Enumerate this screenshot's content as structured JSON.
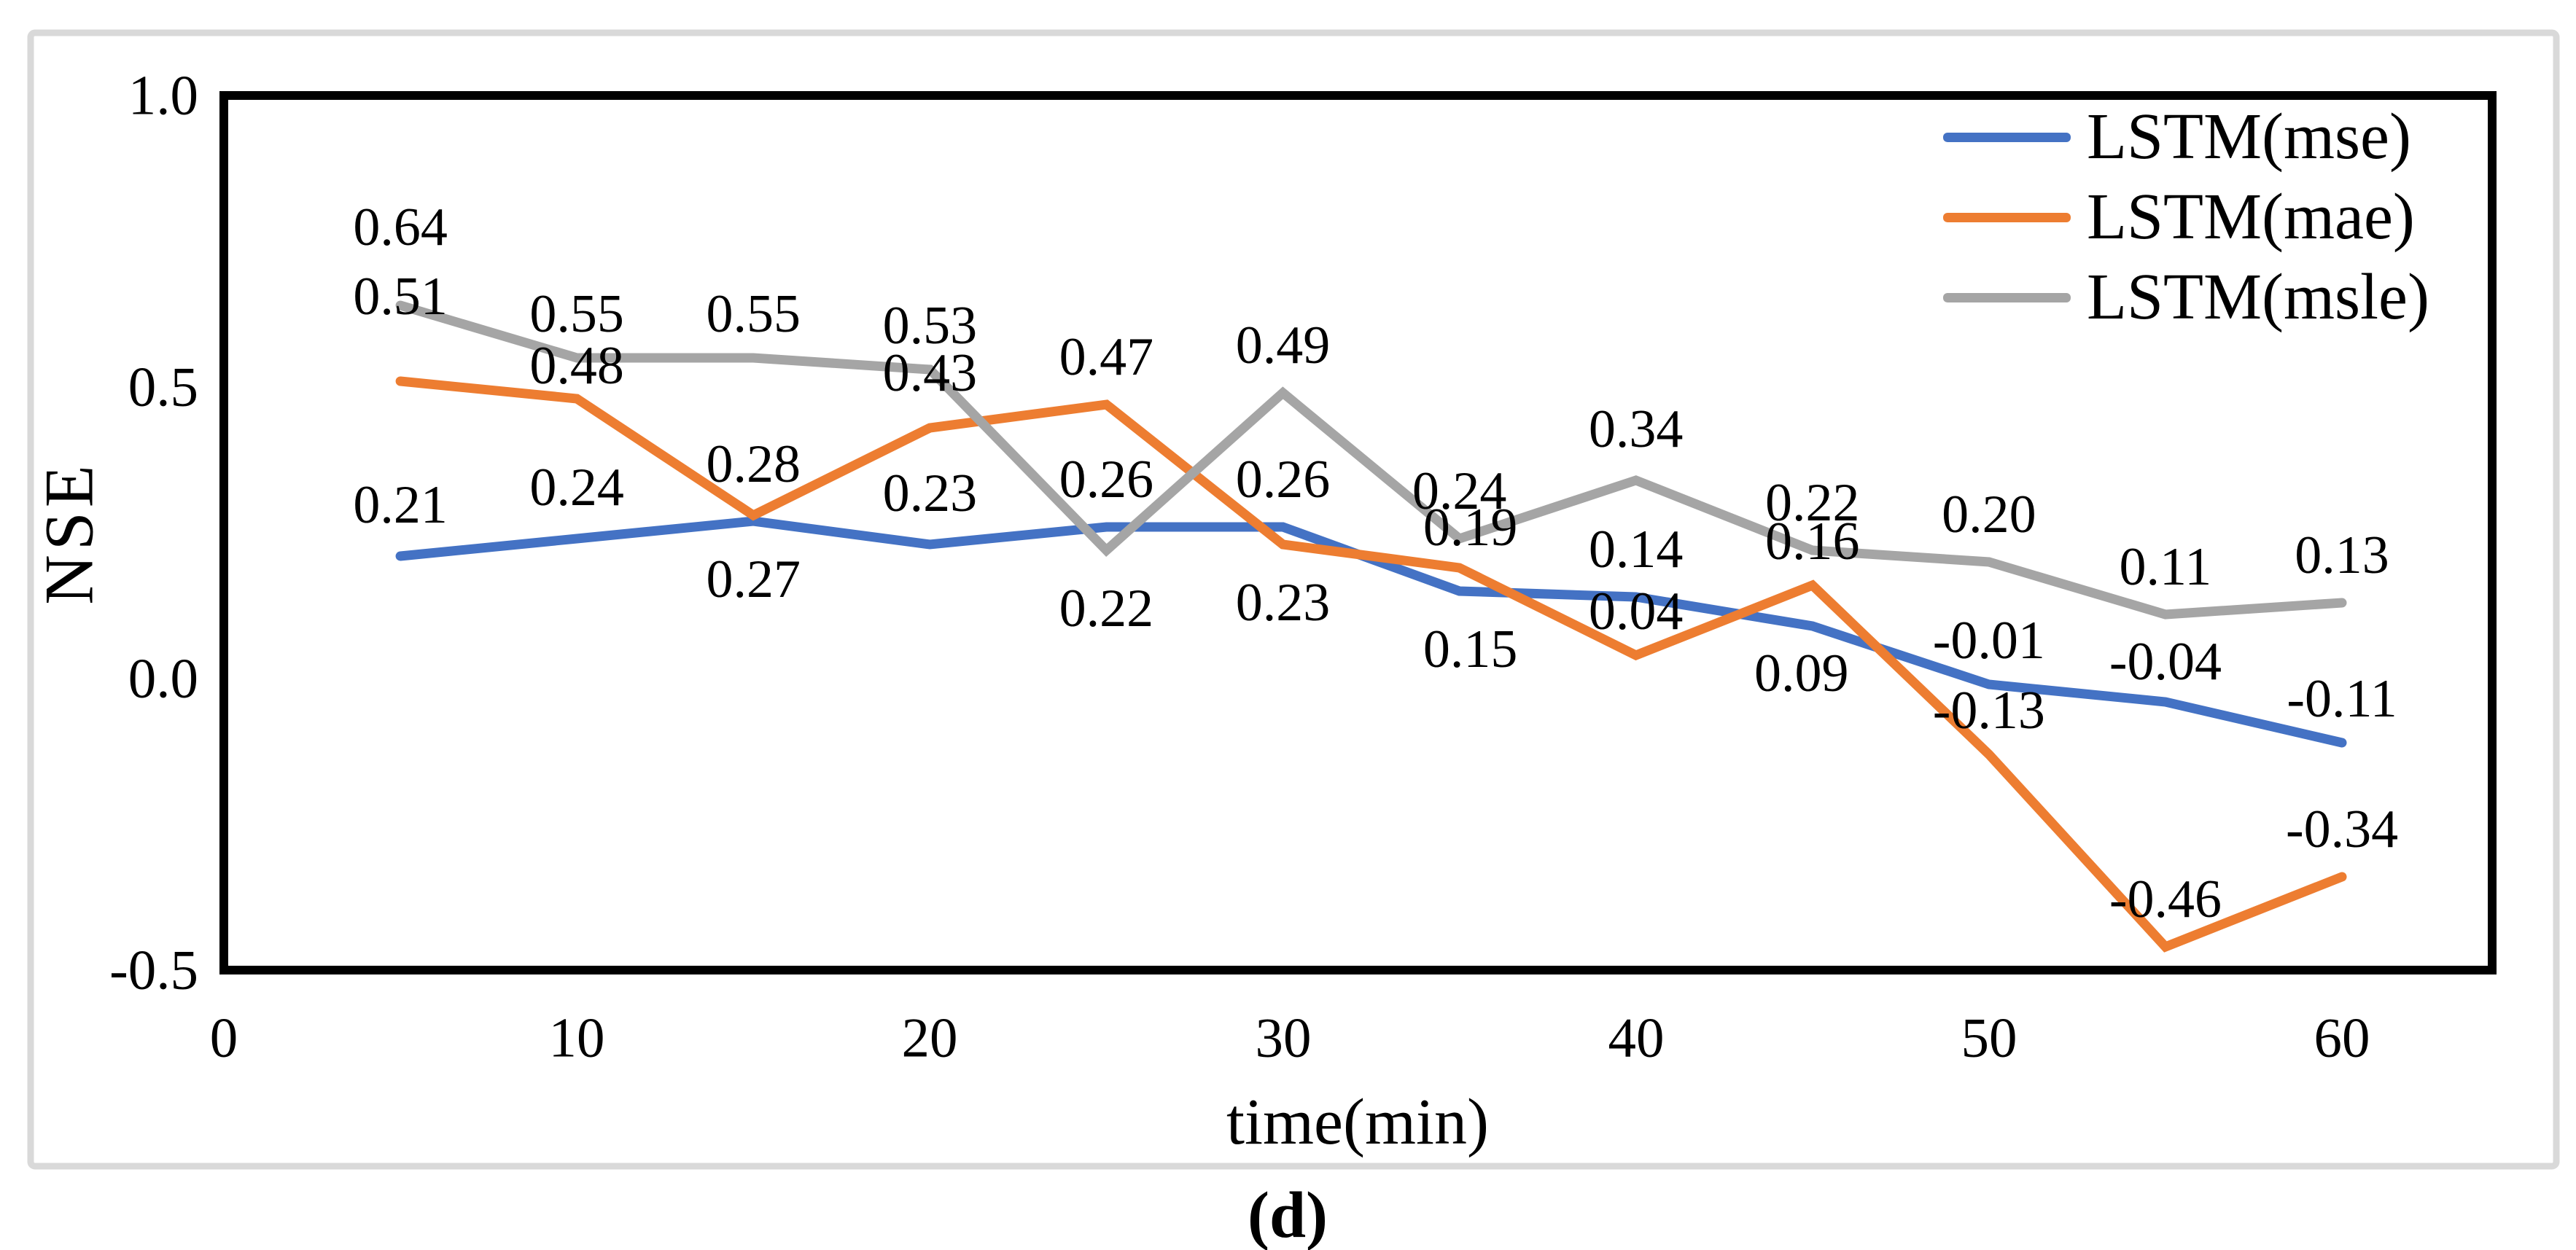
{
  "figure": {
    "caption": "(d)"
  },
  "chart_data": {
    "type": "line",
    "title": "",
    "xlabel": "time(min)",
    "ylabel": "NSE",
    "x": [
      5,
      10,
      15,
      20,
      25,
      30,
      35,
      40,
      45,
      50,
      55,
      60
    ],
    "xlim": [
      0,
      64.3
    ],
    "ylim": [
      -0.5,
      1.0
    ],
    "grid": false,
    "legend_position": "inside-top-right",
    "x_tick_values": [
      0,
      10,
      20,
      30,
      40,
      50,
      60
    ],
    "x_tick_labels": [
      "0",
      "10",
      "20",
      "30",
      "40",
      "50",
      "60"
    ],
    "y_tick_values": [
      1.0,
      0.5,
      0.0,
      -0.5
    ],
    "y_tick_labels": [
      "1.0",
      "0.5",
      "0.0",
      "-0.5"
    ],
    "series": [
      {
        "name": "LSTM(mse)",
        "color": "#4472C4",
        "values": [
          0.21,
          0.24,
          0.27,
          0.23,
          0.26,
          0.26,
          0.15,
          0.14,
          0.09,
          -0.01,
          -0.04,
          -0.11
        ],
        "labels": [
          "0.21",
          "0.24",
          "0.27",
          "0.23",
          "0.26",
          "0.26",
          "0.15",
          "0.14",
          "0.09",
          "-0.01",
          "-0.04",
          "-0.11"
        ],
        "label_dx": [
          0,
          0,
          0,
          0,
          0,
          0,
          15,
          0,
          -15,
          0,
          0,
          0
        ],
        "label_dy": [
          -70,
          -70,
          80,
          -70,
          -65,
          -65,
          80,
          -65,
          65,
          -60,
          -55,
          -60
        ]
      },
      {
        "name": "LSTM(mae)",
        "color": "#ED7D31",
        "values": [
          0.51,
          0.48,
          0.28,
          0.43,
          0.47,
          0.23,
          0.19,
          0.04,
          0.16,
          -0.13,
          -0.46,
          -0.34
        ],
        "labels": [
          "0.51",
          "0.48",
          "0.28",
          "0.43",
          "0.47",
          "0.23",
          "0.19",
          "0.04",
          "0.16",
          "-0.13",
          "-0.46",
          "-0.34"
        ],
        "label_dx": [
          0,
          0,
          0,
          0,
          0,
          0,
          15,
          0,
          0,
          0,
          0,
          0
        ],
        "label_dy": [
          -116,
          -45,
          -70,
          -75,
          -65,
          80,
          -55,
          -60,
          -60,
          -60,
          -65,
          -65
        ]
      },
      {
        "name": "LSTM(msle)",
        "color": "#A5A5A5",
        "values": [
          0.64,
          0.55,
          0.55,
          0.53,
          0.22,
          0.49,
          0.24,
          0.34,
          0.22,
          0.2,
          0.11,
          0.13
        ],
        "labels": [
          "0.64",
          "0.55",
          "0.55",
          "0.53",
          "0.22",
          "0.49",
          "0.24",
          "0.34",
          "0.22",
          "0.20",
          "0.11",
          "0.13"
        ],
        "label_dx": [
          0,
          0,
          0,
          0,
          0,
          0,
          0,
          0,
          0,
          0,
          0,
          0
        ],
        "label_dy": [
          -107,
          -60,
          -60,
          -60,
          80,
          -65,
          -65,
          -70,
          -65,
          -65,
          -65,
          -65
        ]
      }
    ],
    "legend": [
      {
        "label": "LSTM(mse)",
        "color": "#4472C4"
      },
      {
        "label": "LSTM(mae)",
        "color": "#ED7D31"
      },
      {
        "label": "LSTM(msle)",
        "color": "#A5A5A5"
      }
    ]
  }
}
